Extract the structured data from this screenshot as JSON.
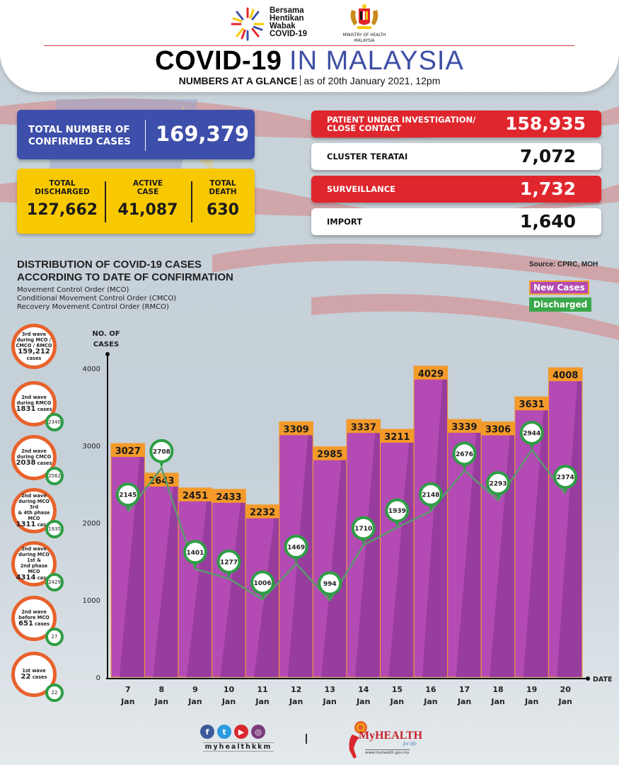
{
  "header": {
    "campaign_logo_text": [
      "Bersama",
      "Hentikan",
      "Wabak",
      "COVID-19"
    ],
    "ministry_text": [
      "MINISTRY OF HEALTH",
      "MALAYSIA"
    ],
    "title_bold": "COVID-19",
    "title_light": "IN MALAYSIA",
    "subtitle_bold": "NUMBERS AT A GLANCE",
    "subtitle_date": "as of 20th January 2021, 12pm"
  },
  "summary": {
    "confirmed": {
      "label_line1": "TOTAL NUMBER OF",
      "label_line2": "CONFIRMED CASES",
      "value": "169,379"
    },
    "discharged": {
      "label_line1": "TOTAL",
      "label_line2": "DISCHARGED",
      "value": "127,662"
    },
    "active": {
      "label_line1": "ACTIVE",
      "label_line2": "CASE",
      "value": "41,087"
    },
    "death": {
      "label_line1": "TOTAL",
      "label_line2": "DEATH",
      "value": "630"
    }
  },
  "categories": [
    {
      "label_line1": "PATIENT UNDER INVESTIGATION/",
      "label_line2": "CLOSE CONTACT",
      "value": "158,935",
      "style": "red"
    },
    {
      "label_line1": "CLUSTER TERATAI",
      "label_line2": "",
      "value": "7,072",
      "style": "white"
    },
    {
      "label_line1": "SURVEILLANCE",
      "label_line2": "",
      "value": "1,732",
      "style": "red"
    },
    {
      "label_line1": "IMPORT",
      "label_line2": "",
      "value": "1,640",
      "style": "white"
    }
  ],
  "distribution": {
    "title_line1": "DISTRIBUTION OF COVID-19 CASES",
    "title_line2": "ACCORDING TO DATE OF CONFIRMATION",
    "notes": [
      "Movement Control Order (MCO)",
      "Conditional Movement Control Order (CMCO)",
      "Recovery Movement Control Order (RMCO)"
    ],
    "source": "Source: CPRC, MOH"
  },
  "waves": [
    {
      "line1": "3rd wave",
      "line2": "during MCO /",
      "line3": "CMCO / RMCO",
      "cases": "159,212",
      "cases_suffix": "cases",
      "discharged": ""
    },
    {
      "line1": "2nd wave",
      "line2": "during RMCO",
      "line3": "",
      "cases": "1831",
      "cases_suffix": "cases",
      "discharged": "2340"
    },
    {
      "line1": "2nd wave",
      "line2": "during CMCO",
      "line3": "",
      "cases": "2038",
      "cases_suffix": "cases",
      "discharged": "2562"
    },
    {
      "line1": "2nd wave",
      "line2": "during MCO 3rd",
      "line3": "& 4th phase MCO",
      "cases": "1311",
      "cases_suffix": "cases",
      "discharged": "1935"
    },
    {
      "line1": "2nd wave",
      "line2": "during MCO 1st &",
      "line3": "2nd phase MCO",
      "cases": "4314",
      "cases_suffix": "cases",
      "discharged": "2429"
    },
    {
      "line1": "2nd wave",
      "line2": "before MCO",
      "line3": "",
      "cases": "651",
      "cases_suffix": "cases",
      "discharged": "27"
    },
    {
      "line1": "1st wave",
      "line2": "",
      "line3": "",
      "cases": "22",
      "cases_suffix": "cases",
      "discharged": "22"
    }
  ],
  "footer": {
    "social_handle": "myhealthkkm",
    "social_icons": [
      "facebook-icon",
      "twitter-icon",
      "youtube-icon",
      "instagram-icon"
    ],
    "brand_my": "My",
    "brand_health": "HEALTH",
    "brand_tagline": "for life",
    "brand_url": "www.myhealth.gov.my"
  },
  "colors": {
    "new_cases": "#b44ab4",
    "new_cases_dark": "#93399a",
    "new_cases_label_bg": "#f39a2a",
    "discharged": "#2e9e45",
    "discharged_line": "#5b9a6e",
    "confirmed_box": "#3d4faa",
    "summary_box": "#f8c800",
    "red_box": "#e0262d"
  },
  "chart_data": {
    "type": "bar",
    "title": "Distribution of COVID-19 cases according to date of confirmation",
    "ylabel": "NO. OF CASES",
    "xlabel": "DATE",
    "ylim": [
      0,
      4000
    ],
    "yticks": [
      0,
      1000,
      2000,
      3000,
      4000
    ],
    "categories": [
      [
        "7",
        "Jan"
      ],
      [
        "8",
        "Jan"
      ],
      [
        "9",
        "Jan"
      ],
      [
        "10",
        "Jan"
      ],
      [
        "11",
        "Jan"
      ],
      [
        "12",
        "Jan"
      ],
      [
        "13",
        "Jan"
      ],
      [
        "14",
        "Jan"
      ],
      [
        "15",
        "Jan"
      ],
      [
        "16",
        "Jan"
      ],
      [
        "17",
        "Jan"
      ],
      [
        "18",
        "Jan"
      ],
      [
        "19",
        "Jan"
      ],
      [
        "20",
        "Jan"
      ]
    ],
    "series": [
      {
        "name": "New Cases",
        "type": "bar",
        "values": [
          3027,
          2643,
          2451,
          2433,
          2232,
          3309,
          2985,
          3337,
          3211,
          4029,
          3339,
          3306,
          3631,
          4008
        ]
      },
      {
        "name": "Discharged",
        "type": "line",
        "values": [
          2145,
          2708,
          1401,
          1277,
          1006,
          1469,
          994,
          1710,
          1939,
          2148,
          2676,
          2293,
          2944,
          2374
        ]
      }
    ],
    "legend": [
      "New Cases",
      "Discharged"
    ],
    "legend_position": "top-right",
    "grid": false
  }
}
